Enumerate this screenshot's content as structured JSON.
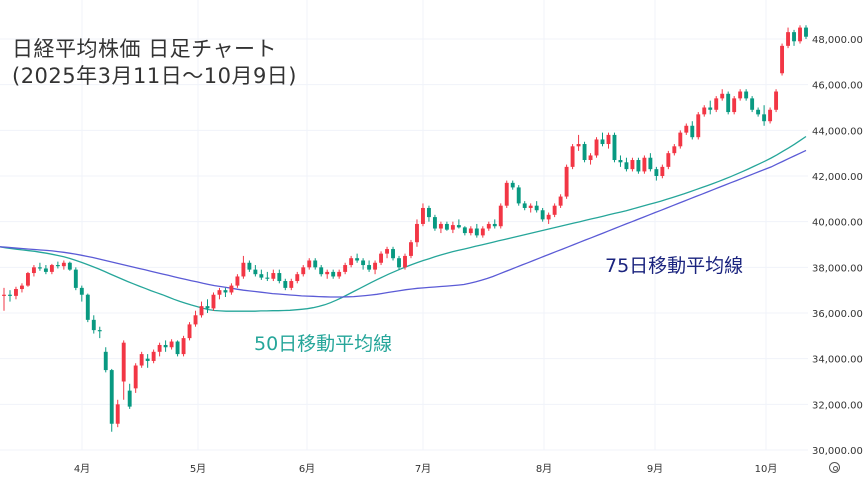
{
  "title_line1": "日経平均株価 日足チャート",
  "title_line2": "(2025年3月11日～10月9日)",
  "annotations": {
    "ma50": "50日移動平均線",
    "ma75": "75日移動平均線"
  },
  "colors": {
    "up": "#f23645",
    "down": "#089981",
    "ma50": "#26a69a",
    "ma75": "#5b5bd6",
    "grid": "#f0f3fa"
  },
  "icons": {
    "settings": "settings-gear-icon"
  },
  "chart_data": {
    "type": "candlestick",
    "x_axis": {
      "tick_labels": [
        "4月",
        "5月",
        "6月",
        "7月",
        "8月",
        "9月",
        "10月"
      ],
      "start": "2025-03-11",
      "end": "2025-10-09"
    },
    "y_axis": {
      "ylim": [
        30000,
        49000
      ],
      "tick_labels": [
        "30,000.00",
        "32,000.00",
        "34,000.00",
        "36,000.00",
        "38,000.00",
        "40,000.00",
        "42,000.00",
        "44,000.00",
        "46,000.00",
        "48,000.00"
      ],
      "position": "right"
    },
    "grid": true,
    "candles_ohlc": [
      [
        36750,
        37100,
        36100,
        36800
      ],
      [
        36800,
        37000,
        36500,
        36750
      ],
      [
        36750,
        37150,
        36600,
        37050
      ],
      [
        37050,
        37300,
        36900,
        37200
      ],
      [
        37200,
        37800,
        37150,
        37750
      ],
      [
        37750,
        38100,
        37600,
        38000
      ],
      [
        38000,
        38200,
        37850,
        37950
      ],
      [
        37950,
        38100,
        37700,
        37800
      ],
      [
        37800,
        38150,
        37700,
        38100
      ],
      [
        38100,
        38250,
        37950,
        38050
      ],
      [
        38050,
        38300,
        37900,
        38200
      ],
      [
        38200,
        38250,
        37850,
        37900
      ],
      [
        37900,
        38000,
        37000,
        37100
      ],
      [
        37100,
        37200,
        36500,
        36800
      ],
      [
        36800,
        36850,
        35600,
        35700
      ],
      [
        35700,
        35900,
        35100,
        35250
      ],
      [
        35250,
        35400,
        34900,
        35200
      ],
      [
        34300,
        34500,
        33400,
        33500
      ],
      [
        33500,
        33550,
        30800,
        31150
      ],
      [
        31150,
        32200,
        31000,
        32000
      ],
      [
        33000,
        34800,
        32200,
        34700
      ],
      [
        32600,
        32900,
        31800,
        31900
      ],
      [
        32700,
        33800,
        32500,
        33700
      ],
      [
        33700,
        34300,
        33600,
        34200
      ],
      [
        34000,
        34200,
        33600,
        33900
      ],
      [
        33900,
        34400,
        33800,
        34300
      ],
      [
        34300,
        34700,
        34100,
        34600
      ],
      [
        34600,
        34800,
        34300,
        34500
      ],
      [
        34500,
        34850,
        34400,
        34750
      ],
      [
        34750,
        34800,
        34100,
        34200
      ],
      [
        34200,
        35000,
        34100,
        34900
      ],
      [
        34900,
        35600,
        34800,
        35500
      ],
      [
        35500,
        36100,
        35400,
        35900
      ],
      [
        35900,
        36500,
        35800,
        36300
      ],
      [
        36300,
        36600,
        36000,
        36200
      ],
      [
        36200,
        36900,
        36100,
        36800
      ],
      [
        36800,
        37100,
        36600,
        37000
      ],
      [
        37000,
        37100,
        36700,
        36900
      ],
      [
        36900,
        37300,
        36800,
        37200
      ],
      [
        37200,
        37700,
        37100,
        37600
      ],
      [
        37600,
        38500,
        37500,
        38200
      ],
      [
        38200,
        38300,
        37800,
        37900
      ],
      [
        37900,
        38100,
        37600,
        37700
      ],
      [
        37700,
        37900,
        37450,
        37550
      ],
      [
        37550,
        37800,
        37400,
        37500
      ],
      [
        37500,
        37900,
        37400,
        37750
      ],
      [
        37750,
        37900,
        37300,
        37400
      ],
      [
        37400,
        37500,
        37000,
        37100
      ],
      [
        37100,
        37500,
        37000,
        37400
      ],
      [
        37400,
        37800,
        37300,
        37700
      ],
      [
        37700,
        38100,
        37600,
        38000
      ],
      [
        38000,
        38400,
        37900,
        38300
      ],
      [
        38300,
        38400,
        37900,
        38000
      ],
      [
        38000,
        38100,
        37600,
        37700
      ],
      [
        37700,
        37900,
        37500,
        37800
      ],
      [
        37800,
        37900,
        37500,
        37600
      ],
      [
        37600,
        37900,
        37500,
        37800
      ],
      [
        37800,
        38200,
        37700,
        38100
      ],
      [
        38100,
        38500,
        38000,
        38400
      ],
      [
        38400,
        38600,
        38200,
        38300
      ],
      [
        38300,
        38400,
        37900,
        38100
      ],
      [
        38100,
        38300,
        37800,
        37900
      ],
      [
        37900,
        38300,
        37700,
        38200
      ],
      [
        38200,
        38700,
        38100,
        38600
      ],
      [
        38600,
        38900,
        38400,
        38800
      ],
      [
        38800,
        38900,
        38300,
        38400
      ],
      [
        38400,
        38500,
        37900,
        38000
      ],
      [
        38000,
        38600,
        37900,
        38500
      ],
      [
        38500,
        39200,
        38400,
        39100
      ],
      [
        39100,
        40100,
        38900,
        39900
      ],
      [
        39900,
        40800,
        39800,
        40600
      ],
      [
        40600,
        40700,
        40000,
        40200
      ],
      [
        40200,
        40300,
        39600,
        39700
      ],
      [
        39700,
        40000,
        39500,
        39900
      ],
      [
        39900,
        40000,
        39600,
        39650
      ],
      [
        39650,
        40000,
        39500,
        39850
      ],
      [
        39850,
        40100,
        39700,
        39750
      ],
      [
        39750,
        39800,
        39400,
        39500
      ],
      [
        39500,
        39800,
        39400,
        39700
      ],
      [
        39700,
        39900,
        39300,
        39400
      ],
      [
        39400,
        39800,
        39300,
        39700
      ],
      [
        39700,
        40000,
        39600,
        39900
      ],
      [
        39900,
        40100,
        39700,
        39800
      ],
      [
        39800,
        40800,
        39700,
        40700
      ],
      [
        40700,
        41800,
        40600,
        41700
      ],
      [
        41700,
        41800,
        41400,
        41500
      ],
      [
        41500,
        41600,
        40700,
        40800
      ],
      [
        40800,
        40900,
        40500,
        40600
      ],
      [
        40600,
        40800,
        40400,
        40700
      ],
      [
        40700,
        40900,
        40400,
        40500
      ],
      [
        40500,
        40600,
        40000,
        40100
      ],
      [
        40100,
        40400,
        39900,
        40300
      ],
      [
        40300,
        40800,
        40200,
        40700
      ],
      [
        40700,
        41200,
        40600,
        41100
      ],
      [
        41100,
        42500,
        41000,
        42400
      ],
      [
        42400,
        43400,
        42300,
        43300
      ],
      [
        43300,
        43800,
        43100,
        43400
      ],
      [
        43400,
        43500,
        42600,
        42700
      ],
      [
        42700,
        43000,
        42500,
        42900
      ],
      [
        42900,
        43700,
        42800,
        43600
      ],
      [
        43600,
        43900,
        43300,
        43400
      ],
      [
        43400,
        43900,
        43200,
        43800
      ],
      [
        43800,
        43900,
        42600,
        42700
      ],
      [
        42700,
        42900,
        42400,
        42600
      ],
      [
        42600,
        42800,
        42200,
        42300
      ],
      [
        42300,
        42800,
        42200,
        42700
      ],
      [
        42700,
        42800,
        42100,
        42200
      ],
      [
        42200,
        42900,
        42100,
        42800
      ],
      [
        42800,
        43000,
        42200,
        42300
      ],
      [
        42300,
        42400,
        41800,
        42000
      ],
      [
        42000,
        42500,
        41900,
        42400
      ],
      [
        42400,
        43100,
        42300,
        43000
      ],
      [
        43000,
        43400,
        42900,
        43300
      ],
      [
        43300,
        44000,
        43200,
        43900
      ],
      [
        43900,
        44300,
        43800,
        44200
      ],
      [
        44200,
        44400,
        43600,
        43700
      ],
      [
        43700,
        44800,
        43600,
        44700
      ],
      [
        44700,
        45100,
        44600,
        45000
      ],
      [
        45000,
        45300,
        44700,
        44900
      ],
      [
        44900,
        45500,
        44800,
        45400
      ],
      [
        45400,
        45800,
        45300,
        45600
      ],
      [
        45600,
        45700,
        44700,
        44800
      ],
      [
        44800,
        45500,
        44700,
        45400
      ],
      [
        45400,
        45800,
        45300,
        45700
      ],
      [
        45700,
        45800,
        45300,
        45400
      ],
      [
        45400,
        45500,
        44800,
        44900
      ],
      [
        44900,
        45000,
        44600,
        44700
      ],
      [
        44700,
        45100,
        44200,
        44400
      ],
      [
        44400,
        45000,
        44300,
        44900
      ],
      [
        44900,
        45800,
        44800,
        45700
      ],
      [
        46500,
        47800,
        46400,
        47700
      ],
      [
        47700,
        48500,
        47600,
        48300
      ],
      [
        48300,
        48400,
        47700,
        47900
      ],
      [
        47900,
        48600,
        47800,
        48500
      ],
      [
        48500,
        48600,
        48000,
        48100
      ]
    ],
    "series": [
      {
        "name": "50日移動平均線",
        "values": [
          38900,
          38850,
          38820,
          38790,
          38760,
          38730,
          38700,
          38660,
          38620,
          38570,
          38520,
          38460,
          38390,
          38310,
          38220,
          38130,
          38030,
          37930,
          37820,
          37710,
          37600,
          37490,
          37380,
          37280,
          37180,
          37080,
          36980,
          36890,
          36800,
          36700,
          36600,
          36510,
          36430,
          36350,
          36280,
          36210,
          36150,
          36110,
          36090,
          36080,
          36080,
          36080,
          36080,
          36080,
          36080,
          36090,
          36090,
          36100,
          36100,
          36110,
          36120,
          36140,
          36160,
          36190,
          36230,
          36290,
          36360,
          36450,
          36560,
          36680,
          36810,
          36940,
          37070,
          37200,
          37330,
          37460,
          37580,
          37700,
          37810,
          37920,
          38020,
          38120,
          38210,
          38300,
          38380,
          38460,
          38540,
          38610,
          38680,
          38740,
          38800,
          38860,
          38920,
          38980,
          39040,
          39100,
          39160,
          39220,
          39280,
          39340,
          39400,
          39460,
          39520,
          39580,
          39640,
          39700,
          39760,
          39820,
          39880,
          39940,
          40000,
          40060,
          40120,
          40180,
          40240,
          40300,
          40360,
          40420,
          40480,
          40550,
          40620,
          40690,
          40760,
          40830,
          40900,
          40980,
          41060,
          41140,
          41220,
          41310,
          41400,
          41490,
          41580,
          41670,
          41770,
          41870,
          41970,
          42080,
          42190,
          42300,
          42420,
          42540,
          42660,
          42790,
          42930,
          43080,
          43230,
          43390,
          43560,
          43730
        ]
      },
      {
        "name": "75日移動平均線",
        "values": [
          38900,
          38880,
          38860,
          38840,
          38820,
          38800,
          38780,
          38760,
          38740,
          38720,
          38690,
          38660,
          38620,
          38580,
          38530,
          38480,
          38430,
          38370,
          38310,
          38250,
          38190,
          38130,
          38070,
          38010,
          37950,
          37890,
          37830,
          37770,
          37710,
          37650,
          37590,
          37530,
          37470,
          37410,
          37360,
          37300,
          37250,
          37200,
          37160,
          37120,
          37080,
          37040,
          37000,
          36970,
          36940,
          36910,
          36880,
          36850,
          36830,
          36810,
          36790,
          36770,
          36750,
          36740,
          36730,
          36720,
          36710,
          36700,
          36700,
          36700,
          36710,
          36720,
          36740,
          36760,
          36790,
          36820,
          36860,
          36900,
          36940,
          36980,
          37020,
          37050,
          37080,
          37100,
          37120,
          37140,
          37160,
          37180,
          37200,
          37220,
          37250,
          37300,
          37360,
          37430,
          37510,
          37600,
          37700,
          37800,
          37900,
          38000,
          38100,
          38200,
          38300,
          38400,
          38500,
          38600,
          38700,
          38800,
          38900,
          39000,
          39100,
          39200,
          39300,
          39400,
          39500,
          39600,
          39700,
          39800,
          39900,
          40000,
          40100,
          40200,
          40300,
          40400,
          40500,
          40600,
          40700,
          40800,
          40900,
          41000,
          41100,
          41200,
          41300,
          41400,
          41500,
          41600,
          41700,
          41800,
          41900,
          42000,
          42100,
          42200,
          42300,
          42400,
          42520,
          42640,
          42760,
          42880,
          43000,
          43120
        ]
      }
    ]
  }
}
